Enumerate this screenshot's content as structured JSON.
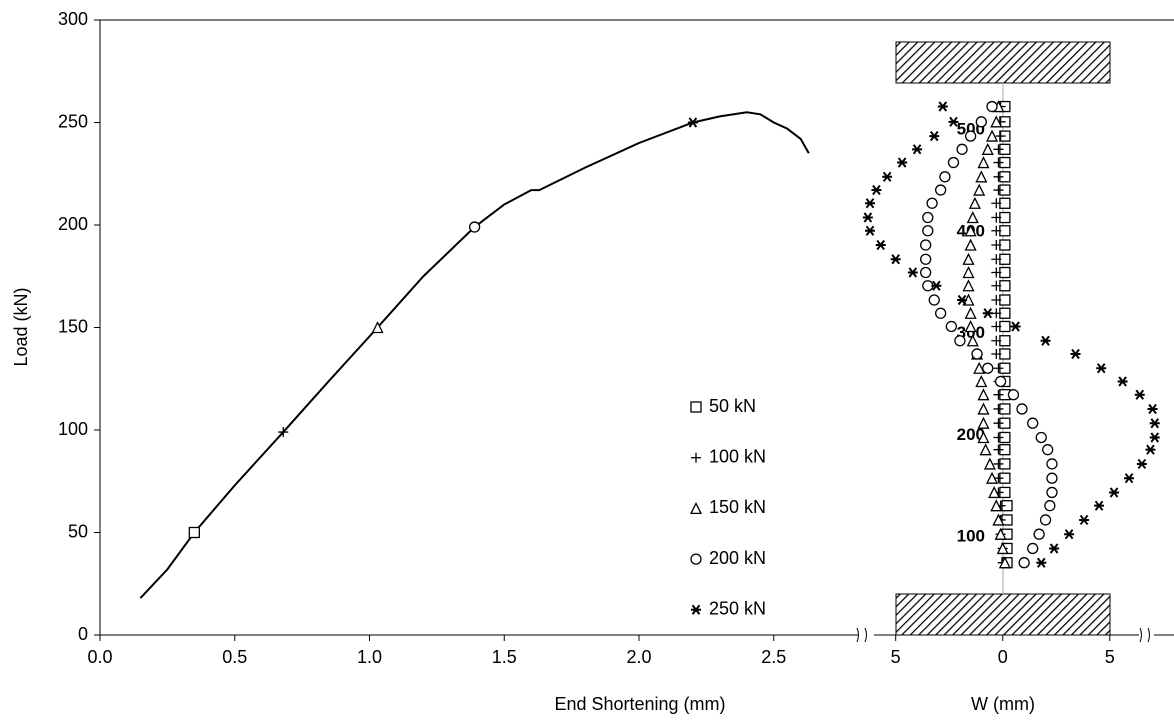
{
  "chart_data": [
    {
      "type": "line",
      "xlabel": "End Shortening (mm)",
      "ylabel": "Load  (kN)",
      "xlim": [
        0,
        2.8
      ],
      "ylim": [
        0,
        300
      ],
      "xticks": [
        {
          "value": 0,
          "label": "0.0"
        },
        0.5,
        {
          "value": 1,
          "label": "1.0"
        },
        1.5,
        {
          "value": 2,
          "label": "2.0"
        },
        2.5
      ],
      "yticks": [
        0,
        50,
        100,
        150,
        200,
        250,
        300
      ],
      "x": [
        0.15,
        0.25,
        0.35,
        0.5,
        0.68,
        0.85,
        1.03,
        1.2,
        1.39,
        1.5,
        1.6,
        1.63,
        1.8,
        2.0,
        2.2,
        2.3,
        2.4,
        2.45,
        2.5,
        2.55,
        2.6,
        2.63
      ],
      "y": [
        18,
        32,
        50,
        73,
        99,
        124,
        150,
        175,
        199,
        210,
        217,
        217,
        228,
        240,
        250,
        253,
        255,
        254,
        250,
        247,
        242,
        235
      ],
      "color": "#000000",
      "series": [
        {
          "marker": "square",
          "x": [
            0.35
          ],
          "y": [
            50
          ]
        },
        {
          "marker": "plus",
          "x": [
            0.68
          ],
          "y": [
            99
          ]
        },
        {
          "marker": "triangle",
          "x": [
            1.03
          ],
          "y": [
            150
          ]
        },
        {
          "marker": "circle",
          "x": [
            1.39
          ],
          "y": [
            199
          ]
        },
        {
          "marker": "star",
          "x": [
            2.2
          ],
          "y": [
            250
          ]
        }
      ]
    },
    {
      "type": "scatter",
      "xlabel": "W (mm)",
      "xlim": [
        -6.2,
        8
      ],
      "ylim": [
        4,
        608
      ],
      "xticks": [
        {
          "value": -5,
          "label": "5"
        },
        0,
        5
      ],
      "yticks": [
        100,
        200,
        300,
        400,
        500
      ],
      "y": [
        75,
        89,
        103,
        117,
        131,
        144,
        158,
        172,
        186,
        198,
        212,
        226,
        240,
        253,
        266,
        280,
        293,
        307,
        320,
        333,
        347,
        360,
        373,
        387,
        401,
        414,
        428,
        441,
        454,
        468,
        481,
        494,
        508,
        523
      ],
      "series": [
        {
          "name": "50 kN",
          "marker": "square",
          "values": [
            0.2,
            0.2,
            0.2,
            0.2,
            0.2,
            0.1,
            0.1,
            0.1,
            0.1,
            0.1,
            0.1,
            0.1,
            0.1,
            0.1,
            0.1,
            0.1,
            0.1,
            0.1,
            0.1,
            0.1,
            0.1,
            0.1,
            0.1,
            0.1,
            0.1,
            0.1,
            0.1,
            0.1,
            0.1,
            0.1,
            0.1,
            0.1,
            0.1,
            0.1
          ]
        },
        {
          "name": "100 kN",
          "marker": "plus",
          "values": [
            0,
            0,
            -0.1,
            -0.1,
            -0.1,
            -0.2,
            -0.2,
            -0.2,
            -0.2,
            -0.2,
            -0.2,
            -0.2,
            -0.2,
            -0.2,
            -0.2,
            -0.3,
            -0.3,
            -0.3,
            -0.3,
            -0.3,
            -0.3,
            -0.3,
            -0.3,
            -0.3,
            -0.3,
            -0.3,
            -0.3,
            -0.2,
            -0.2,
            -0.2,
            -0.2,
            -0.1,
            -0.1,
            -0.1
          ]
        },
        {
          "name": "150 kN",
          "marker": "triangle",
          "values": [
            0.1,
            0,
            -0.1,
            -0.2,
            -0.3,
            -0.4,
            -0.5,
            -0.6,
            -0.8,
            -0.9,
            -0.9,
            -0.9,
            -0.9,
            -1,
            -1.1,
            -1.2,
            -1.4,
            -1.5,
            -1.5,
            -1.6,
            -1.6,
            -1.6,
            -1.6,
            -1.5,
            -1.5,
            -1.4,
            -1.3,
            -1.1,
            -1,
            -0.9,
            -0.7,
            -0.5,
            -0.3,
            -0.2
          ]
        },
        {
          "name": "200 kN",
          "marker": "circle",
          "values": [
            1,
            1.4,
            1.7,
            2,
            2.2,
            2.3,
            2.3,
            2.3,
            2.1,
            1.8,
            1.4,
            0.9,
            0.5,
            -0.1,
            -0.7,
            -1.2,
            -2,
            -2.4,
            -2.9,
            -3.2,
            -3.5,
            -3.6,
            -3.6,
            -3.6,
            -3.5,
            -3.5,
            -3.3,
            -2.9,
            -2.7,
            -2.3,
            -1.9,
            -1.5,
            -1,
            -0.5
          ]
        },
        {
          "name": "250 kN",
          "marker": "star",
          "values": [
            1.8,
            2.4,
            3.1,
            3.8,
            4.5,
            5.2,
            5.9,
            6.5,
            6.9,
            7.1,
            7.1,
            7,
            6.4,
            5.6,
            4.6,
            3.4,
            2,
            0.6,
            -0.7,
            -1.9,
            -3.1,
            -4.2,
            -5,
            -5.7,
            -6.2,
            -6.3,
            -6.2,
            -5.9,
            -5.4,
            -4.7,
            -4,
            -3.2,
            -2.3,
            -2.8
          ]
        }
      ]
    }
  ]
}
